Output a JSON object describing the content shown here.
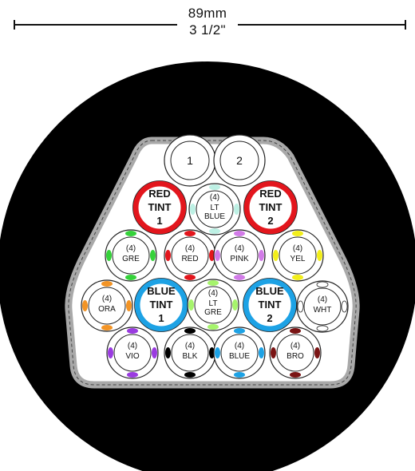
{
  "dimension": {
    "metric": "89mm",
    "imperial": "3 1/2\""
  },
  "conductors": [
    {
      "id": "c1",
      "kind": "plain",
      "label": "1"
    },
    {
      "id": "c2",
      "kind": "plain",
      "label": "2"
    },
    {
      "id": "rt1",
      "kind": "tint",
      "lines": [
        "RED",
        "TINT",
        "1"
      ],
      "ring": "#e3161d"
    },
    {
      "id": "ltb",
      "kind": "bundle",
      "count": "(4)",
      "lines": [
        "LT",
        "BLUE"
      ],
      "marks": "#bdf0e4"
    },
    {
      "id": "rt2",
      "kind": "tint",
      "lines": [
        "RED",
        "TINT",
        "2"
      ],
      "ring": "#e3161d"
    },
    {
      "id": "gre",
      "kind": "bundle",
      "count": "(4)",
      "lines": [
        "GRE"
      ],
      "marks": "#35d23a"
    },
    {
      "id": "red",
      "kind": "bundle",
      "count": "(4)",
      "lines": [
        "RED"
      ],
      "marks": "#e3161d"
    },
    {
      "id": "pnk",
      "kind": "bundle",
      "count": "(4)",
      "lines": [
        "PINK"
      ],
      "marks": "#d27be8"
    },
    {
      "id": "yel",
      "kind": "bundle",
      "count": "(4)",
      "lines": [
        "YEL"
      ],
      "marks": "#f2ee1a"
    },
    {
      "id": "ora",
      "kind": "bundle",
      "count": "(4)",
      "lines": [
        "ORA"
      ],
      "marks": "#f39425"
    },
    {
      "id": "bt1",
      "kind": "tint",
      "lines": [
        "BLUE",
        "TINT",
        "1"
      ],
      "ring": "#1da2e5"
    },
    {
      "id": "ltg",
      "kind": "bundle",
      "count": "(4)",
      "lines": [
        "LT",
        "GRE"
      ],
      "marks": "#a6f46c"
    },
    {
      "id": "bt2",
      "kind": "tint",
      "lines": [
        "BLUE",
        "TINT",
        "2"
      ],
      "ring": "#1da2e5"
    },
    {
      "id": "wht",
      "kind": "bundle",
      "count": "(4)",
      "lines": [
        "WHT"
      ],
      "marks": "#ffffff"
    },
    {
      "id": "vio",
      "kind": "bundle",
      "count": "(4)",
      "lines": [
        "VIO"
      ],
      "marks": "#9a3be0"
    },
    {
      "id": "blk",
      "kind": "bundle",
      "count": "(4)",
      "lines": [
        "BLK"
      ],
      "marks": "#000000"
    },
    {
      "id": "blu",
      "kind": "bundle",
      "count": "(4)",
      "lines": [
        "BLUE"
      ],
      "marks": "#1da2e5"
    },
    {
      "id": "bro",
      "kind": "bundle",
      "count": "(4)",
      "lines": [
        "BRO"
      ],
      "marks": "#7a1414"
    }
  ]
}
